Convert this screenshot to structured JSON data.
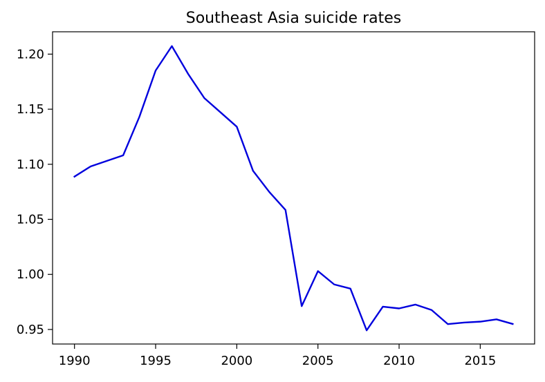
{
  "chart_data": {
    "type": "line",
    "title": "Southeast Asia suicide rates",
    "xlabel": "",
    "ylabel": "",
    "xlim": [
      1988.65,
      2018.35
    ],
    "ylim": [
      0.9368,
      1.2203
    ],
    "x_ticks": [
      1990,
      1995,
      2000,
      2005,
      2010,
      2015
    ],
    "x_tick_labels": [
      "1990",
      "1995",
      "2000",
      "2005",
      "2010",
      "2015"
    ],
    "y_ticks": [
      0.95,
      1.0,
      1.05,
      1.1,
      1.15,
      1.2
    ],
    "y_tick_labels": [
      "0.95",
      "1.00",
      "1.05",
      "1.10",
      "1.15",
      "1.20"
    ],
    "grid": false,
    "legend": false,
    "series": [
      {
        "color": "#0000dd",
        "x": [
          1990,
          1991,
          1992,
          1993,
          1994,
          1995,
          1996,
          1997,
          1998,
          1999,
          2000,
          2001,
          2002,
          2003,
          2004,
          2005,
          2006,
          2007,
          2008,
          2009,
          2010,
          2011,
          2012,
          2013,
          2014,
          2015,
          2016,
          2017
        ],
        "y": [
          1.0888,
          1.0981,
          1.1031,
          1.1081,
          1.1431,
          1.1851,
          1.2073,
          1.1821,
          1.1601,
          1.1471,
          1.1341,
          1.0941,
          1.0749,
          1.0585,
          0.9712,
          1.003,
          0.9909,
          0.9871,
          0.9492,
          0.9707,
          0.9691,
          0.9726,
          0.9677,
          0.9549,
          0.9563,
          0.9571,
          0.9592,
          0.955
        ]
      }
    ]
  }
}
